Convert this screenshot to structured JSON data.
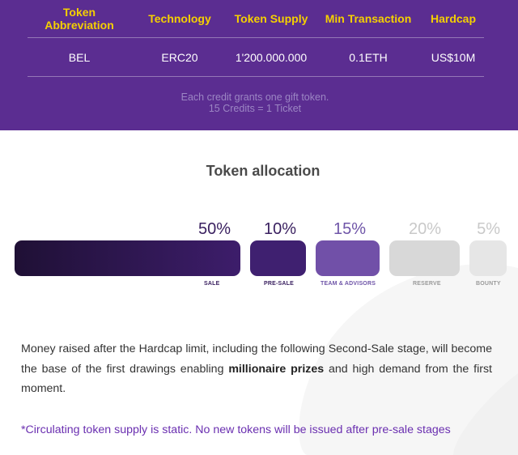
{
  "token_table": {
    "headers": [
      "Token Abbreviation",
      "Technology",
      "Token Supply",
      "Min Transaction",
      "Hardcap"
    ],
    "values": [
      "BEL",
      "ERC20",
      "1'200.000.000",
      "0.1ETH",
      "US$10M"
    ]
  },
  "credit_note": {
    "line1": "Each credit grants one gift token.",
    "line2": "15 Credits = 1 Ticket"
  },
  "allocation": {
    "title": "Token allocation",
    "segments": [
      {
        "percent": "50%",
        "label": "SALE",
        "share": 0.5
      },
      {
        "percent": "10%",
        "label": "PRE-SALE",
        "share": 0.1
      },
      {
        "percent": "15%",
        "label": "TEAM & ADVISORS",
        "share": 0.15
      },
      {
        "percent": "20%",
        "label": "RESERVE",
        "share": 0.2
      },
      {
        "percent": "5%",
        "label": "BOUNTY",
        "share": 0.05
      }
    ]
  },
  "paragraph": {
    "before": "Money raised after the Hardcap limit, including the following Second-Sale stage, will become the base of the first drawings enabling ",
    "bold": "millionaire prizes",
    "after": " and high demand from the first moment."
  },
  "footnote": "*Circulating token supply is static. No new tokens will be issued after pre-sale stages",
  "colors": {
    "banner": "#5b2d91",
    "header_text": "#f5d000",
    "sale_gradient_start": "#1f1035",
    "sale_gradient_end": "#3d1d6b",
    "presale": "#3f2070",
    "team": "#7150a8",
    "reserve": "#d8d8d8",
    "bounty": "#e6e6e6",
    "footnote": "#6a2fb0"
  }
}
